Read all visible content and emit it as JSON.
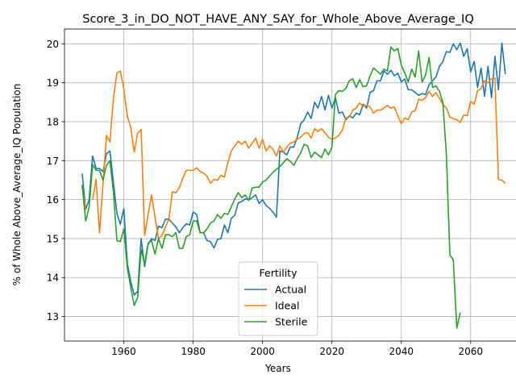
{
  "chart_data": {
    "type": "line",
    "title": "Score_3_in_DO_NOT_HAVE_ANY_SAY_for_Whole_Above_Average_IQ",
    "xlabel": "Years",
    "ylabel": "% of Whole Above_Average_IQ Population",
    "xlim": [
      1942.9,
      2073.3
    ],
    "ylim": [
      12.37,
      20.38
    ],
    "xticks": [
      1960,
      1980,
      2000,
      2020,
      2040,
      2060
    ],
    "yticks": [
      13,
      14,
      15,
      16,
      17,
      18,
      19,
      20
    ],
    "grid": true,
    "legend": {
      "title": "Fertility",
      "position": "lower center"
    },
    "series": [
      {
        "name": "Actual",
        "color": "#1f77b4",
        "x": [
          1948,
          1949,
          1950,
          1951,
          1952,
          1953,
          1954,
          1955,
          1956,
          1957,
          1958,
          1959,
          1960,
          1961,
          1962,
          1963,
          1964,
          1965,
          1966,
          1967,
          1968,
          1969,
          1970,
          1971,
          1972,
          1973,
          1974,
          1975,
          1976,
          1977,
          1978,
          1979,
          1980,
          1981,
          1982,
          1983,
          1984,
          1985,
          1986,
          1987,
          1988,
          1989,
          1990,
          1991,
          1992,
          1993,
          1994,
          1995,
          1996,
          1997,
          1998,
          1999,
          2000,
          2001,
          2002,
          2003,
          2004,
          2005,
          2006,
          2007,
          2008,
          2009,
          2010,
          2011,
          2012,
          2013,
          2014,
          2015,
          2016,
          2017,
          2018,
          2019,
          2020,
          2021,
          2022,
          2023,
          2024,
          2025,
          2026,
          2027,
          2028,
          2029,
          2030,
          2031,
          2032,
          2033,
          2034,
          2035,
          2036,
          2037,
          2038,
          2039,
          2040,
          2041,
          2042,
          2043,
          2044,
          2045,
          2046,
          2047,
          2048,
          2049,
          2050,
          2051,
          2052,
          2053,
          2054,
          2055,
          2056,
          2057,
          2058,
          2059,
          2060,
          2061,
          2062,
          2063,
          2064,
          2065,
          2066,
          2067,
          2068,
          2069,
          2070
        ],
        "y": [
          16.67,
          15.75,
          16.0,
          17.12,
          16.8,
          16.8,
          16.72,
          17.18,
          17.25,
          16.45,
          15.65,
          15.37,
          15.77,
          14.37,
          13.9,
          13.55,
          13.65,
          15.0,
          14.28,
          14.85,
          15.0,
          14.95,
          15.32,
          15.28,
          15.5,
          15.5,
          15.4,
          15.3,
          15.15,
          15.28,
          15.38,
          15.35,
          15.68,
          15.62,
          15.15,
          15.15,
          14.95,
          14.92,
          14.76,
          14.98,
          15.0,
          15.35,
          15.15,
          15.52,
          15.6,
          15.92,
          15.95,
          16.02,
          16.0,
          16.05,
          16.12,
          15.9,
          16.0,
          15.85,
          15.78,
          15.68,
          15.55,
          17.25,
          17.22,
          17.15,
          17.35,
          17.35,
          17.6,
          17.95,
          18.05,
          18.25,
          18.08,
          18.5,
          18.35,
          18.65,
          18.3,
          18.68,
          18.35,
          18.62,
          18.22,
          18.25,
          18.05,
          18.15,
          18.1,
          18.22,
          18.18,
          18.45,
          18.35,
          18.75,
          18.8,
          19.05,
          19.05,
          19.3,
          19.22,
          19.32,
          19.18,
          19.25,
          19.02,
          19.1,
          18.82,
          18.82,
          18.75,
          18.68,
          18.72,
          18.7,
          18.95,
          19.05,
          19.15,
          19.42,
          19.55,
          19.8,
          19.78,
          20.0,
          19.85,
          20.02,
          19.68,
          19.87,
          19.28,
          19.55,
          18.88,
          19.38,
          18.65,
          19.42,
          18.62,
          19.68,
          18.82,
          20.02,
          19.22
        ]
      },
      {
        "name": "Ideal",
        "color": "#ff7f0e",
        "x": [
          1948,
          1949,
          1950,
          1951,
          1952,
          1953,
          1954,
          1955,
          1956,
          1957,
          1958,
          1959,
          1960,
          1961,
          1962,
          1963,
          1964,
          1965,
          1966,
          1967,
          1968,
          1969,
          1970,
          1971,
          1972,
          1973,
          1974,
          1975,
          1976,
          1977,
          1978,
          1979,
          1980,
          1981,
          1982,
          1983,
          1984,
          1985,
          1986,
          1987,
          1988,
          1989,
          1990,
          1991,
          1992,
          1993,
          1994,
          1995,
          1996,
          1997,
          1998,
          1999,
          2000,
          2001,
          2002,
          2003,
          2004,
          2005,
          2006,
          2007,
          2008,
          2009,
          2010,
          2011,
          2012,
          2013,
          2014,
          2015,
          2016,
          2017,
          2018,
          2019,
          2020,
          2021,
          2022,
          2023,
          2024,
          2025,
          2026,
          2027,
          2028,
          2029,
          2030,
          2031,
          2032,
          2033,
          2034,
          2035,
          2036,
          2037,
          2038,
          2039,
          2040,
          2041,
          2042,
          2043,
          2044,
          2045,
          2046,
          2047,
          2048,
          2049,
          2050,
          2051,
          2052,
          2053,
          2054,
          2055,
          2056,
          2057,
          2058,
          2059,
          2060,
          2061,
          2062,
          2063,
          2064,
          2065,
          2066,
          2067,
          2068,
          2069,
          2070
        ],
        "y": [
          16.3,
          15.75,
          null,
          16.0,
          16.52,
          15.15,
          16.4,
          17.65,
          17.48,
          18.6,
          19.25,
          19.3,
          18.85,
          18.15,
          17.85,
          17.22,
          17.7,
          17.8,
          15.08,
          15.62,
          16.12,
          15.55,
          15.0,
          15.08,
          15.3,
          15.5,
          16.2,
          16.18,
          16.3,
          16.55,
          16.75,
          16.75,
          16.75,
          16.82,
          16.72,
          16.68,
          16.6,
          16.42,
          16.52,
          16.5,
          16.62,
          16.58,
          16.95,
          17.25,
          17.38,
          17.5,
          17.42,
          17.5,
          17.32,
          17.45,
          17.58,
          17.32,
          17.55,
          17.25,
          17.38,
          17.3,
          17.12,
          17.38,
          17.22,
          17.35,
          17.45,
          17.48,
          17.55,
          17.6,
          17.7,
          17.72,
          17.58,
          17.82,
          17.75,
          17.82,
          17.72,
          17.6,
          17.55,
          17.58,
          17.65,
          17.78,
          18.1,
          18.12,
          18.3,
          18.35,
          18.48,
          18.4,
          18.42,
          18.38,
          18.22,
          18.3,
          18.3,
          18.35,
          18.42,
          18.35,
          18.38,
          18.15,
          17.95,
          18.1,
          18.05,
          18.25,
          18.28,
          18.58,
          18.55,
          18.62,
          18.78,
          18.65,
          18.75,
          18.6,
          18.45,
          18.35,
          18.12,
          18.08,
          18.05,
          17.98,
          18.18,
          18.15,
          18.52,
          18.45,
          18.8,
          18.85,
          19.05,
          19.0,
          19.1,
          19.12,
          16.52,
          16.5,
          16.42
        ]
      },
      {
        "name": "Sterile",
        "color": "#2ca02c",
        "x": [
          1948,
          1949,
          1950,
          1951,
          1952,
          1953,
          1954,
          1955,
          1956,
          1957,
          1958,
          1959,
          1960,
          1961,
          1962,
          1963,
          1964,
          1965,
          1966,
          1967,
          1968,
          1969,
          1970,
          1971,
          1972,
          1973,
          1974,
          1975,
          1976,
          1977,
          1978,
          1979,
          1980,
          1981,
          1982,
          1983,
          1984,
          1985,
          1986,
          1987,
          1988,
          1989,
          1990,
          1991,
          1992,
          1993,
          1994,
          1995,
          1996,
          1997,
          1998,
          1999,
          2000,
          2001,
          2002,
          2003,
          2004,
          2005,
          2006,
          2007,
          2008,
          2009,
          2010,
          2011,
          2012,
          2013,
          2014,
          2015,
          2016,
          2017,
          2018,
          2019,
          2020,
          2021,
          2022,
          2023,
          2024,
          2025,
          2026,
          2027,
          2028,
          2029,
          2030,
          2031,
          2032,
          2033,
          2034,
          2035,
          2036,
          2037,
          2038,
          2039,
          2040,
          2041,
          2042,
          2043,
          2044,
          2045,
          2046,
          2047,
          2048,
          2049,
          2050,
          2051,
          2052,
          2053,
          2054,
          2055,
          2056,
          2057
        ],
        "y": [
          16.38,
          15.45,
          15.8,
          16.9,
          16.75,
          16.75,
          16.5,
          16.88,
          17.0,
          16.2,
          14.95,
          14.92,
          15.25,
          14.25,
          13.75,
          13.28,
          13.5,
          14.72,
          14.35,
          14.88,
          14.95,
          14.6,
          15.0,
          14.75,
          15.1,
          15.1,
          15.05,
          15.15,
          14.75,
          14.75,
          15.05,
          15.1,
          15.45,
          15.45,
          15.15,
          15.15,
          15.25,
          15.4,
          15.45,
          15.62,
          15.52,
          15.65,
          15.62,
          15.82,
          16.02,
          16.18,
          16.05,
          16.12,
          15.98,
          16.3,
          16.32,
          16.32,
          16.45,
          16.5,
          16.6,
          16.7,
          16.78,
          16.85,
          16.95,
          17.05,
          16.98,
          16.88,
          17.05,
          17.2,
          17.42,
          17.38,
          17.08,
          17.22,
          17.15,
          17.08,
          17.3,
          17.15,
          17.35,
          18.7,
          18.8,
          18.78,
          18.85,
          19.05,
          19.1,
          18.88,
          19.08,
          18.9,
          18.92,
          19.18,
          19.38,
          19.3,
          19.22,
          19.35,
          19.3,
          19.92,
          19.82,
          19.88,
          19.45,
          19.25,
          19.02,
          19.35,
          19.15,
          19.82,
          19.02,
          19.2,
          19.65,
          18.88,
          18.92,
          18.78,
          18.48,
          17.15,
          14.58,
          14.45,
          12.7,
          13.1
        ]
      }
    ]
  }
}
